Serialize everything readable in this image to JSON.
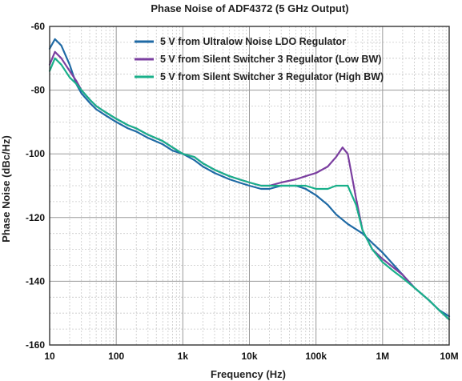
{
  "chart_data": {
    "type": "line",
    "title": "Phase Noise of ADF4372 (5 GHz Output)",
    "xlabel": "Frequency (Hz)",
    "ylabel": "Phase Noise (dBc/Hz)",
    "xscale": "log",
    "xlim": [
      10,
      10000000
    ],
    "ylim": [
      -160,
      -60
    ],
    "x_ticks": [
      10,
      100,
      1000,
      10000,
      100000,
      1000000,
      10000000
    ],
    "x_tick_labels": [
      "10",
      "100",
      "1k",
      "10k",
      "100k",
      "1M",
      "10M"
    ],
    "y_ticks": [
      -60,
      -80,
      -100,
      -120,
      -140,
      -160
    ],
    "y_tick_labels": [
      "-60",
      "-80",
      "-100",
      "-120",
      "-140",
      "-160"
    ],
    "grid": true,
    "legend": "top-right",
    "series": [
      {
        "name": "5 V from Ultralow Noise LDO Regulator",
        "color": "#1f6aa5",
        "x": [
          10,
          12,
          15,
          20,
          25,
          30,
          40,
          50,
          70,
          100,
          150,
          200,
          300,
          500,
          700,
          1000,
          1500,
          2000,
          3000,
          5000,
          7000,
          10000,
          15000,
          20000,
          30000,
          50000,
          70000,
          100000,
          150000,
          200000,
          300000,
          500000,
          700000,
          1000000,
          2000000,
          3000000,
          5000000,
          7000000,
          10000000
        ],
        "y": [
          -67,
          -64,
          -66,
          -72,
          -78,
          -81,
          -84,
          -86,
          -88,
          -90,
          -92,
          -93,
          -95,
          -97,
          -99,
          -100,
          -102,
          -104,
          -106,
          -108,
          -109,
          -110,
          -111,
          -111,
          -110,
          -110,
          -111,
          -113,
          -116,
          -119,
          -122,
          -125,
          -128,
          -131,
          -138,
          -142,
          -146,
          -149,
          -151
        ]
      },
      {
        "name": "5 V from Silent Switcher 3 Regulator (Low BW)",
        "color": "#7b3fa0",
        "x": [
          10,
          12,
          15,
          20,
          25,
          30,
          40,
          50,
          70,
          100,
          150,
          200,
          300,
          500,
          700,
          1000,
          1500,
          2000,
          3000,
          5000,
          7000,
          10000,
          15000,
          20000,
          30000,
          50000,
          70000,
          100000,
          150000,
          200000,
          250000,
          300000,
          400000,
          500000,
          700000,
          1000000,
          2000000,
          3000000,
          5000000,
          7000000,
          10000000
        ],
        "y": [
          -72,
          -68,
          -70,
          -74,
          -77,
          -80,
          -83,
          -85,
          -87,
          -89,
          -91,
          -92,
          -94,
          -96,
          -98,
          -100,
          -101,
          -103,
          -105,
          -107,
          -108,
          -109,
          -110,
          -110,
          -109,
          -108,
          -107,
          -106,
          -104,
          -101,
          -98,
          -100,
          -114,
          -124,
          -130,
          -133,
          -138,
          -142,
          -146,
          -149,
          -152
        ]
      },
      {
        "name": "5 V from Silent Switcher 3 Regulator (High BW)",
        "color": "#19b08a",
        "x": [
          10,
          12,
          15,
          20,
          25,
          30,
          40,
          50,
          70,
          100,
          150,
          200,
          300,
          500,
          700,
          1000,
          1500,
          2000,
          3000,
          5000,
          7000,
          10000,
          15000,
          20000,
          30000,
          50000,
          70000,
          100000,
          150000,
          200000,
          300000,
          400000,
          500000,
          700000,
          1000000,
          1500000,
          2000000,
          3000000,
          5000000,
          7000000,
          10000000
        ],
        "y": [
          -74,
          -70,
          -72,
          -76,
          -78,
          -80,
          -83,
          -85,
          -87,
          -89,
          -91,
          -92,
          -94,
          -96,
          -98,
          -100,
          -101,
          -103,
          -105,
          -107,
          -108,
          -109,
          -110,
          -110,
          -110,
          -110,
          -110,
          -111,
          -111,
          -110,
          -110,
          -116,
          -124,
          -130,
          -134,
          -137,
          -139,
          -142,
          -146,
          -149,
          -152
        ]
      }
    ]
  }
}
